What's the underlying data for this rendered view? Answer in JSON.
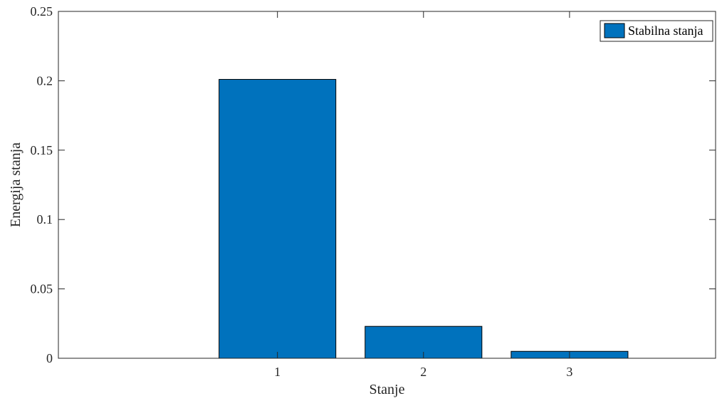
{
  "chart_data": {
    "type": "bar",
    "categories": [
      "1",
      "2",
      "3"
    ],
    "x": [
      1,
      2,
      3
    ],
    "xlim": [
      -0.5,
      4.0
    ],
    "ylim": [
      0,
      0.25
    ],
    "yticks": [
      0,
      0.05,
      0.1,
      0.15,
      0.2,
      0.25
    ],
    "ytick_labels": [
      "0",
      "0.05",
      "0.1",
      "0.15",
      "0.2",
      "0.25"
    ],
    "xlabel": "Stanje",
    "ylabel": "Energija stanja",
    "grid": false,
    "legend_position": "top-right",
    "series": [
      {
        "name": "Stabilna stanja",
        "values": [
          0.201,
          0.023,
          0.005
        ],
        "color": "#0072BD"
      }
    ]
  }
}
